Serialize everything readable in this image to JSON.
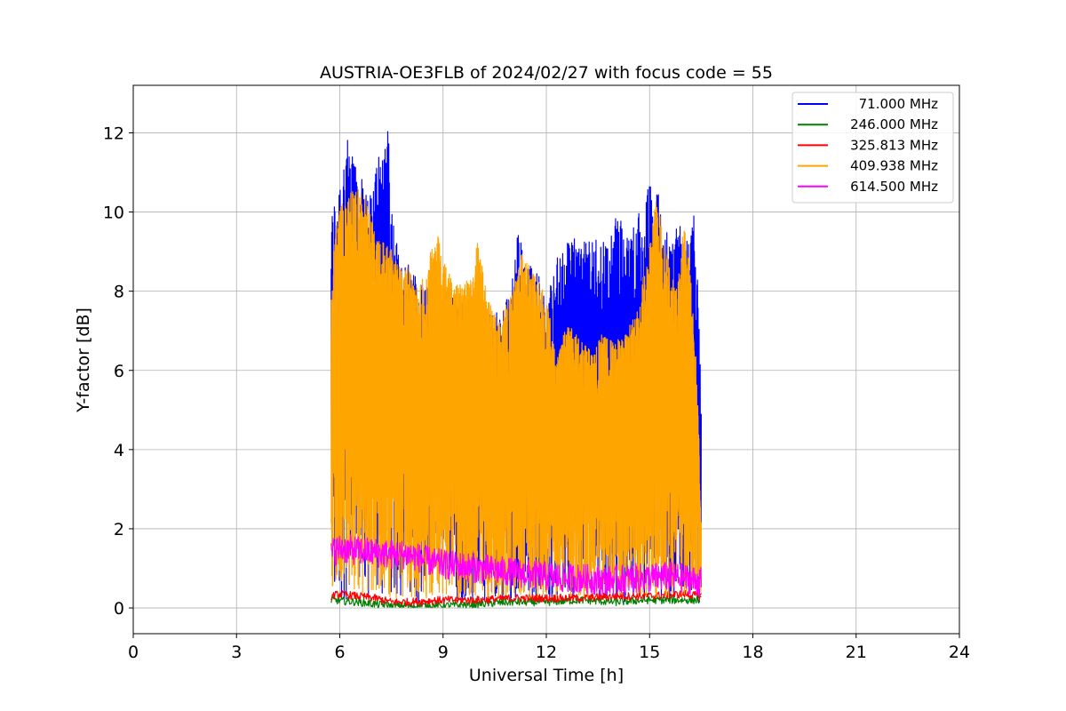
{
  "chart_data": {
    "type": "line",
    "title": "AUSTRIA-OE3FLB of 2024/02/27 with focus code = 55",
    "xlabel": "Universal Time [h]",
    "ylabel": "Y-factor [dB]",
    "xlim": [
      0,
      24
    ],
    "ylim": [
      -0.65,
      13.2
    ],
    "xticks": [
      0,
      3,
      6,
      9,
      12,
      15,
      18,
      21,
      24
    ],
    "yticks": [
      0,
      2,
      4,
      6,
      8,
      10,
      12
    ],
    "grid": true,
    "legend_position": "top-right",
    "series": [
      {
        "name": "71.000 MHz",
        "color": "#0000ff",
        "x": [
          5.75,
          5.85,
          6.0,
          6.1,
          6.2,
          6.3,
          6.4,
          6.5,
          6.6,
          6.7,
          6.8,
          6.9,
          7.0,
          7.1,
          7.2,
          7.3,
          7.4,
          7.5,
          7.6,
          7.8,
          8.0,
          8.2,
          8.5,
          8.8,
          9.0,
          9.3,
          9.6,
          10.0,
          10.4,
          10.8,
          11.0,
          11.2,
          11.4,
          11.6,
          11.8,
          12.0,
          12.2,
          12.4,
          12.6,
          12.8,
          13.0,
          13.2,
          13.4,
          13.6,
          13.8,
          14.0,
          14.2,
          14.4,
          14.6,
          14.8,
          15.0,
          15.1,
          15.2,
          15.4,
          15.6,
          15.8,
          16.0,
          16.2,
          16.3,
          16.4,
          16.5
        ],
        "values": [
          9.9,
          10.4,
          11.0,
          11.5,
          12.0,
          11.3,
          11.8,
          11.6,
          10.6,
          11.2,
          11.0,
          10.4,
          10.9,
          11.6,
          11.4,
          12.0,
          12.6,
          10.4,
          9.5,
          8.8,
          8.7,
          8.4,
          8.2,
          8.3,
          8.1,
          8.0,
          7.8,
          7.6,
          7.4,
          7.7,
          8.3,
          9.7,
          8.6,
          8.7,
          8.8,
          7.4,
          8.8,
          8.9,
          9.2,
          9.5,
          9.1,
          9.4,
          9.3,
          9.5,
          9.1,
          9.9,
          9.8,
          9.3,
          10.2,
          9.7,
          10.9,
          10.2,
          10.8,
          9.9,
          9.1,
          9.9,
          9.7,
          9.4,
          10.0,
          8.9,
          5.0
        ]
      },
      {
        "name": "246.000 MHz",
        "color": "#008000",
        "x": [
          5.75,
          6.5,
          7.5,
          8.0,
          9.0,
          10.0,
          11.0,
          12.0,
          13.0,
          14.0,
          15.0,
          16.0,
          16.5
        ],
        "values": [
          0.2,
          0.15,
          0.05,
          0.05,
          0.05,
          0.1,
          0.15,
          0.15,
          0.2,
          0.15,
          0.2,
          0.2,
          0.2
        ]
      },
      {
        "name": "325.813 MHz",
        "color": "#ff0000",
        "x": [
          5.75,
          6.0,
          6.5,
          7.0,
          7.5,
          8.0,
          9.0,
          10.0,
          11.0,
          12.0,
          13.0,
          14.0,
          15.0,
          16.0,
          16.5
        ],
        "values": [
          0.3,
          0.35,
          0.3,
          0.25,
          0.15,
          0.15,
          0.2,
          0.2,
          0.25,
          0.25,
          0.25,
          0.3,
          0.3,
          0.35,
          0.3
        ]
      },
      {
        "name": "409.938 MHz",
        "color": "#ffa500",
        "x": [
          5.75,
          5.85,
          6.0,
          6.2,
          6.4,
          6.6,
          6.8,
          7.0,
          7.2,
          7.4,
          7.6,
          7.8,
          8.0,
          8.2,
          8.5,
          8.8,
          9.0,
          9.2,
          9.5,
          9.8,
          10.0,
          10.3,
          10.6,
          11.0,
          11.3,
          11.6,
          12.0,
          12.3,
          12.6,
          13.0,
          13.3,
          13.6,
          14.0,
          14.3,
          14.6,
          15.0,
          15.2,
          15.5,
          15.8,
          16.0,
          16.2,
          16.4,
          16.5
        ],
        "values": [
          7.9,
          9.5,
          10.1,
          10.4,
          10.6,
          10.7,
          10.2,
          9.6,
          9.4,
          9.2,
          8.9,
          8.5,
          8.6,
          8.1,
          8.4,
          9.8,
          8.8,
          8.4,
          8.2,
          8.3,
          9.3,
          7.8,
          7.2,
          8.0,
          9.0,
          8.5,
          7.9,
          6.3,
          7.2,
          6.8,
          6.5,
          6.9,
          6.7,
          7.0,
          7.4,
          9.2,
          10.5,
          9.0,
          8.0,
          9.8,
          8.5,
          5.5,
          2.2
        ]
      },
      {
        "name": "614.500 MHz",
        "color": "#ff00ff",
        "x": [
          5.75,
          6.0,
          6.5,
          7.0,
          7.5,
          8.0,
          8.5,
          9.0,
          9.5,
          10.0,
          10.5,
          11.0,
          11.5,
          12.0,
          12.5,
          13.0,
          13.5,
          14.0,
          14.5,
          15.0,
          15.5,
          16.0,
          16.5
        ],
        "values": [
          1.4,
          1.5,
          1.45,
          1.4,
          1.35,
          1.35,
          1.2,
          1.1,
          1.05,
          1.0,
          0.95,
          0.9,
          0.85,
          0.8,
          0.75,
          0.75,
          0.7,
          0.7,
          0.75,
          0.75,
          0.8,
          0.75,
          0.65
        ]
      }
    ]
  }
}
